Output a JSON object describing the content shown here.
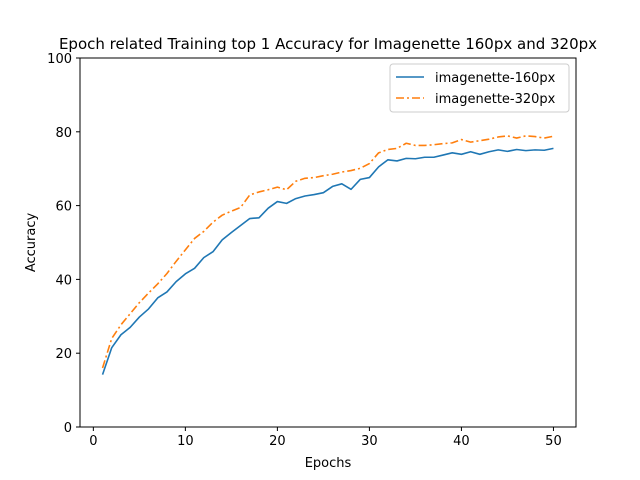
{
  "chart_data": {
    "type": "line",
    "title": "Epoch related Training top 1 Accuracy for Imagenette 160px and 320px",
    "xlabel": "Epochs",
    "ylabel": "Accuracy",
    "xlim": [
      -1.45,
      52.45
    ],
    "ylim": [
      0,
      100
    ],
    "xticks": [
      0,
      10,
      20,
      30,
      40,
      50
    ],
    "yticks": [
      0,
      20,
      40,
      60,
      80,
      100
    ],
    "grid": false,
    "legend_position": "top-right",
    "x": [
      1,
      2,
      3,
      4,
      5,
      6,
      7,
      8,
      9,
      10,
      11,
      12,
      13,
      14,
      15,
      16,
      17,
      18,
      19,
      20,
      21,
      22,
      23,
      24,
      25,
      26,
      27,
      28,
      29,
      30,
      31,
      32,
      33,
      34,
      35,
      36,
      37,
      38,
      39,
      40,
      41,
      42,
      43,
      44,
      45,
      46,
      47,
      48,
      49,
      50
    ],
    "series": [
      {
        "name": "imagenette-160px",
        "color": "#1f77b4",
        "dash": "solid",
        "values": [
          14.2,
          21.5,
          25.0,
          27.0,
          29.8,
          32.0,
          35.0,
          36.6,
          39.4,
          41.5,
          43.0,
          45.9,
          47.5,
          50.7,
          52.7,
          54.6,
          56.5,
          56.7,
          59.3,
          61.1,
          60.6,
          61.9,
          62.6,
          63.0,
          63.5,
          65.2,
          65.9,
          64.4,
          67.1,
          67.6,
          70.5,
          72.4,
          72.1,
          72.8,
          72.7,
          73.1,
          73.1,
          73.7,
          74.3,
          73.9,
          74.6,
          73.9,
          74.6,
          75.1,
          74.7,
          75.2,
          74.9,
          75.1,
          75.0,
          75.5
        ]
      },
      {
        "name": "imagenette-320px",
        "color": "#ff7f0e",
        "dash": "dashdot",
        "values": [
          16.0,
          24.0,
          27.7,
          30.7,
          33.7,
          36.3,
          38.8,
          41.6,
          44.9,
          48.0,
          51.1,
          53.0,
          55.5,
          57.4,
          58.5,
          59.5,
          62.9,
          63.7,
          64.3,
          65.0,
          64.3,
          66.6,
          67.4,
          67.6,
          68.1,
          68.5,
          69.1,
          69.5,
          70.1,
          71.4,
          74.3,
          75.2,
          75.5,
          76.9,
          76.3,
          76.3,
          76.5,
          76.8,
          77.0,
          77.9,
          77.2,
          77.6,
          78.0,
          78.6,
          78.9,
          78.3,
          78.9,
          78.7,
          78.3,
          78.8
        ]
      }
    ]
  }
}
